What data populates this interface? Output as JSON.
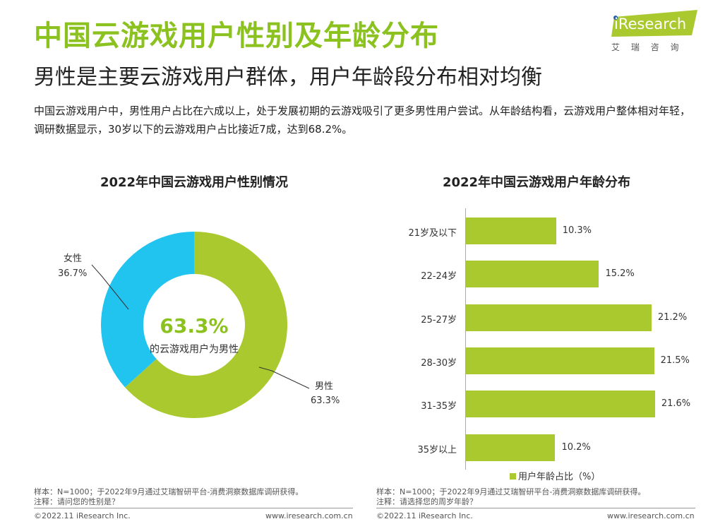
{
  "header": {
    "title": "中国云游戏用户性别及年龄分布",
    "subtitle": "男性是主要云游戏用户群体，用户年龄段分布相对均衡",
    "description": "中国云游戏用户中，男性用户占比在六成以上，处于发展初期的云游戏吸引了更多男性用户尝试。从年龄结构看，云游戏用户整体相对年轻，调研数据显示，30岁以下的云游戏用户占比接近7成，达到68.2%。"
  },
  "logo": {
    "text": "iResearch",
    "cn": "艾 瑞 咨 询",
    "color": "#a9c92f"
  },
  "chart_data": [
    {
      "type": "pie",
      "donut": true,
      "title": "2022年中国云游戏用户性别情况",
      "center_value": "63.3%",
      "center_text": "的云游戏用户为男性",
      "slices": [
        {
          "name": "男性",
          "value": 63.3,
          "label": "63.3%",
          "color": "#a9c92f"
        },
        {
          "name": "女性",
          "value": 36.7,
          "label": "36.7%",
          "color": "#21c4ef"
        }
      ]
    },
    {
      "type": "bar",
      "orientation": "horizontal",
      "title": "2022年中国云游戏用户年龄分布",
      "categories": [
        "21岁及以下",
        "22-24岁",
        "25-27岁",
        "28-30岁",
        "31-35岁",
        "35岁以上"
      ],
      "values": [
        10.3,
        15.2,
        21.2,
        21.5,
        21.6,
        10.2
      ],
      "labels": [
        "10.3%",
        "15.2%",
        "21.2%",
        "21.5%",
        "21.6%",
        "10.2%"
      ],
      "legend": "用户年龄占比（%）",
      "color": "#a9c92f"
    }
  ],
  "notes": {
    "left_sample": "样本：N=1000；于2022年9月通过艾瑞智研平台-消费洞察数据库调研获得。",
    "left_note": "注释：请问您的性别是？",
    "right_sample": "样本：N=1000；于2022年9月通过艾瑞智研平台-消费洞察数据库调研获得。",
    "right_note": "注释：请选择您的周岁年龄？"
  },
  "footer": {
    "copyright": "©2022.11 iResearch Inc.",
    "url": "www.iresearch.com.cn"
  }
}
